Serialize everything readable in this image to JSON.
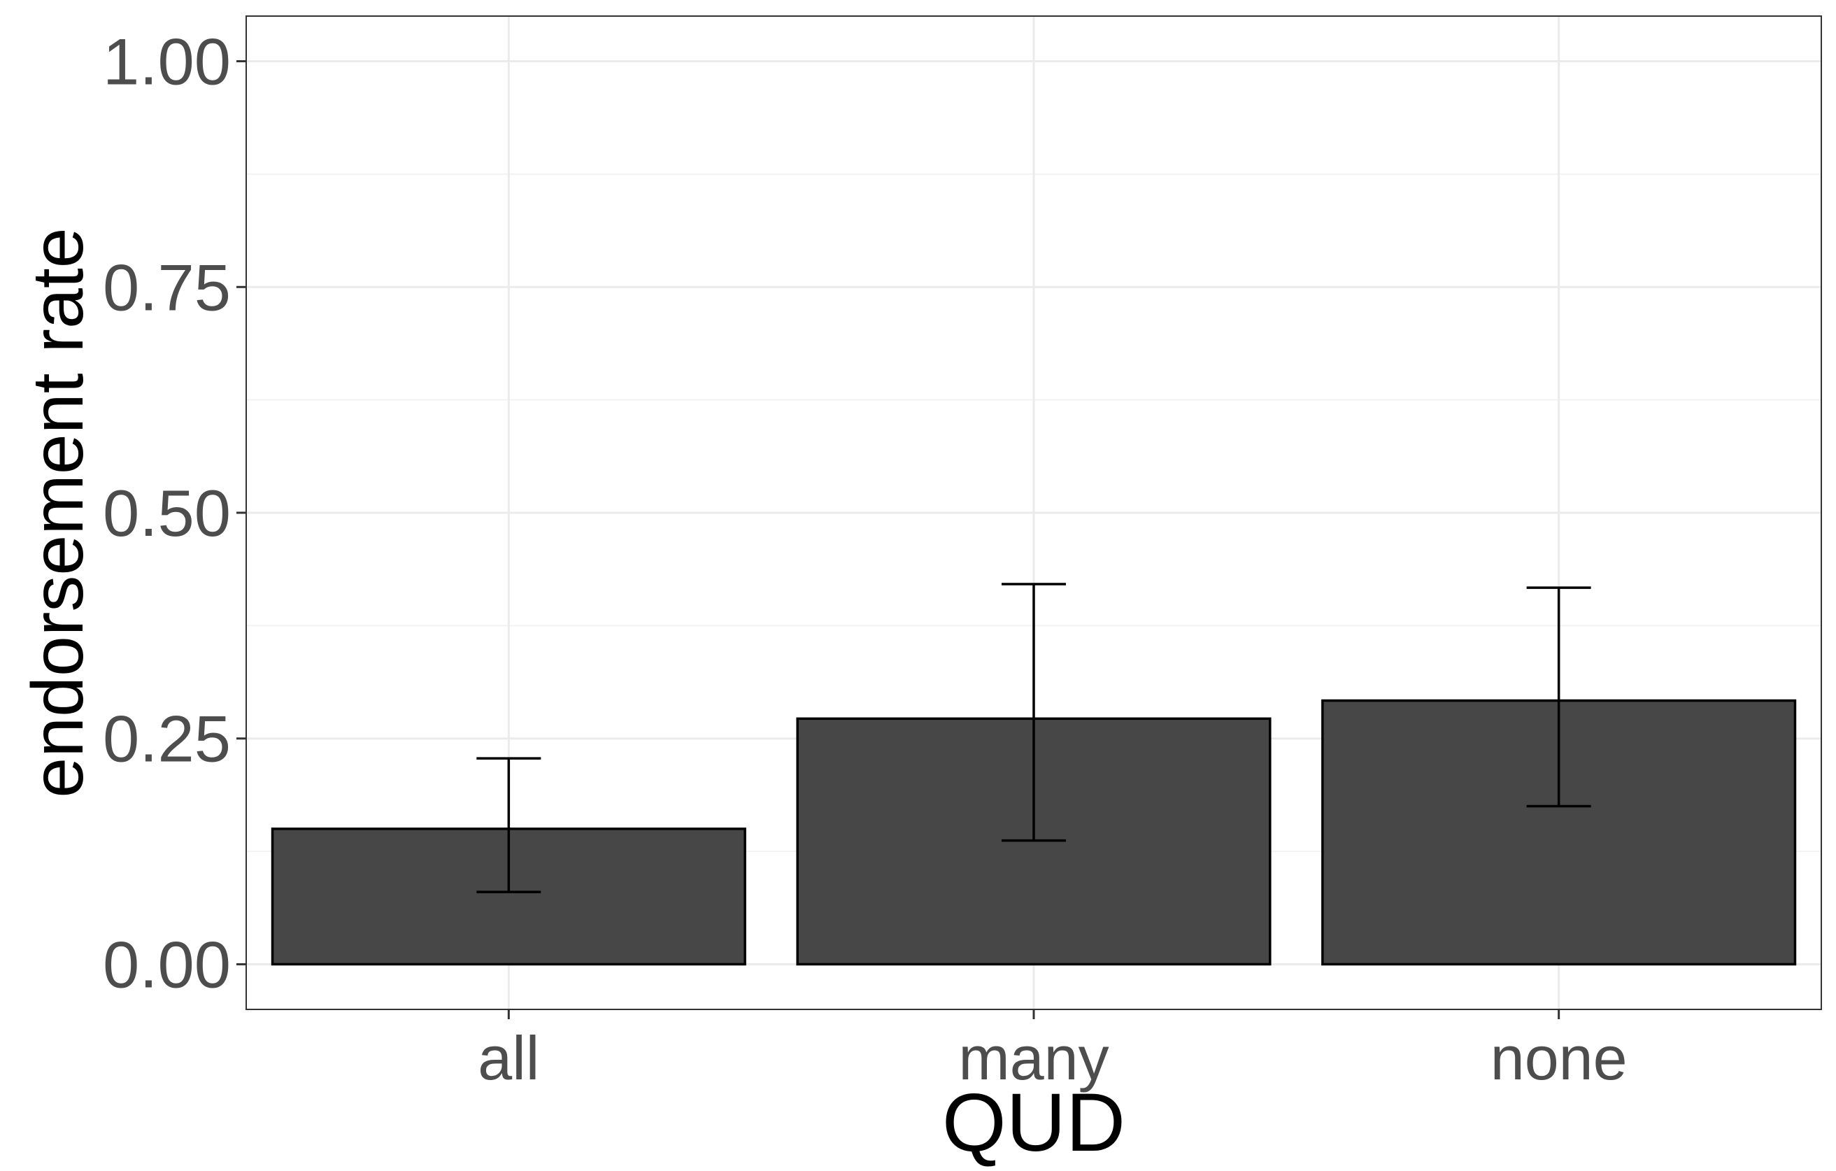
{
  "chart_data": {
    "type": "bar",
    "xlabel": "QUD",
    "ylabel": "endorsement rate",
    "categories": [
      "all",
      "many",
      "none"
    ],
    "values": [
      0.15,
      0.272,
      0.292
    ],
    "error_low": [
      0.08,
      0.137,
      0.175
    ],
    "error_high": [
      0.228,
      0.421,
      0.417
    ],
    "ylim": [
      -0.05,
      1.05
    ],
    "y_ticks": [
      0.0,
      0.25,
      0.5,
      0.75,
      1.0
    ],
    "y_tick_labels": [
      "0.00",
      "0.25",
      "0.50",
      "0.75",
      "1.00"
    ],
    "grid": true,
    "legend": "none",
    "colors": {
      "bar_fill": "#474747",
      "bar_stroke": "#000000",
      "grid_major": "#ebebeb",
      "grid_minor": "#f2f2f2",
      "panel_border": "#333333"
    }
  }
}
